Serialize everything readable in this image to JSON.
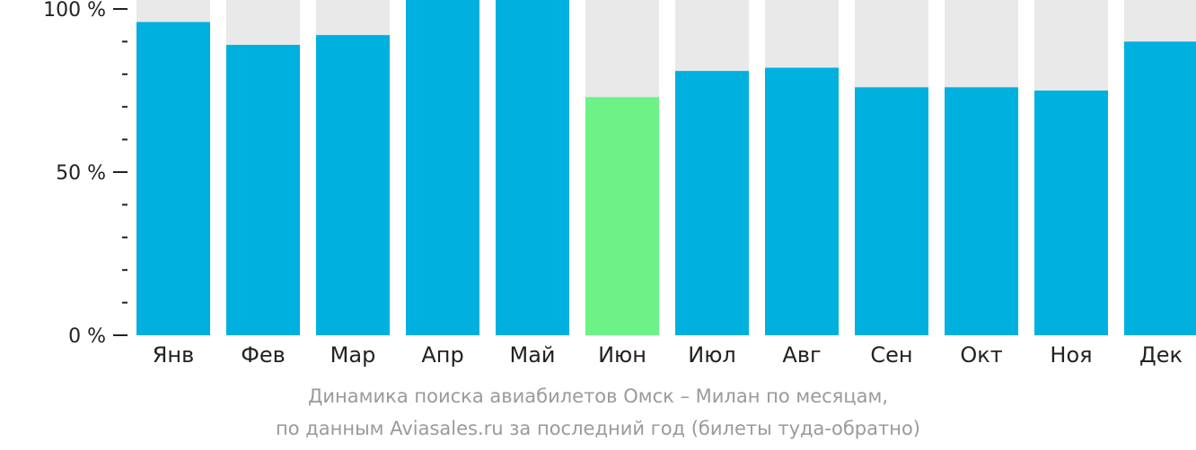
{
  "chart_data": {
    "type": "bar",
    "categories": [
      "Янв",
      "Фев",
      "Мар",
      "Апр",
      "Май",
      "Июн",
      "Июл",
      "Авг",
      "Сен",
      "Окт",
      "Ноя",
      "Дек"
    ],
    "values": [
      96,
      89,
      92,
      100,
      100,
      73,
      81,
      82,
      76,
      76,
      75,
      90
    ],
    "highlight_index": 5,
    "ylim": [
      0,
      100
    ],
    "y_ticks": [
      {
        "value": 0,
        "label": "0 %"
      },
      {
        "value": 50,
        "label": "50 %"
      },
      {
        "value": 100,
        "label": "100 %"
      }
    ],
    "y_minor_step": 10,
    "colors": {
      "bar": "#00b0de",
      "highlight": "#6cf286",
      "background_bar": "#e9e9e9",
      "axis": "#222222"
    },
    "caption_line1": "Динамика поиска авиабилетов Омск – Милан по месяцам,",
    "caption_line2": "по данным Aviasales.ru за последний год (билеты туда-обратно)"
  }
}
